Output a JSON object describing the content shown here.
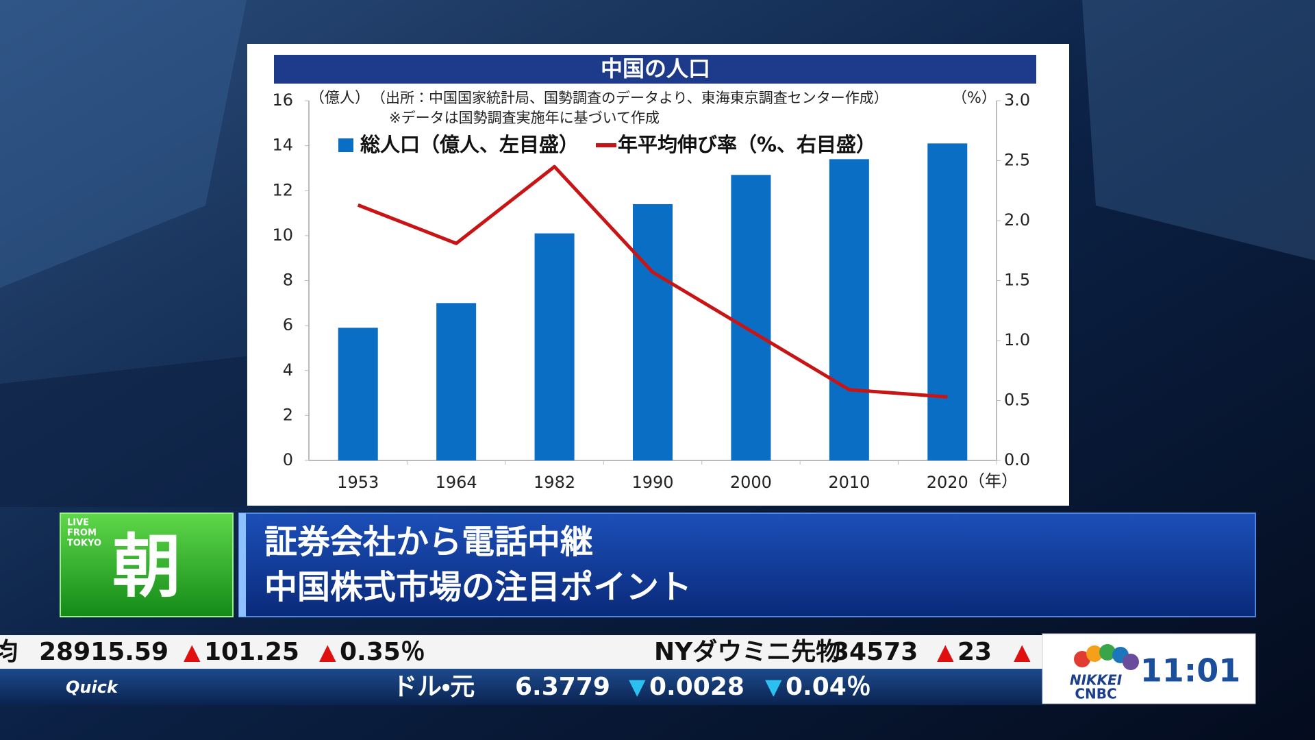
{
  "chart_data": {
    "type": "bar",
    "title": "中国の人口",
    "y_label": "（億人）",
    "source": "（出所：中国国家統計局、国勢調査のデータより、東海東京調査センター作成）",
    "y2_label": "（%）",
    "note": "※データは国勢調査実施年に基づいて作成",
    "x_unit": "（年）",
    "categories": [
      "1953",
      "1964",
      "1982",
      "1990",
      "2000",
      "2010",
      "2020"
    ],
    "series": [
      {
        "name": "総人口（億人、左目盛）",
        "color": "#0a6fc4",
        "type": "bar",
        "values": [
          5.9,
          7.0,
          10.1,
          11.4,
          12.7,
          13.4,
          14.1
        ]
      },
      {
        "name": "年平均伸び率（%、右目盛）",
        "color": "#c81414",
        "type": "line",
        "axis": "y2",
        "values": [
          2.13,
          1.81,
          2.45,
          1.57,
          1.08,
          0.59,
          0.53
        ]
      }
    ],
    "ylim": [
      0,
      16
    ],
    "yticks": [
      0,
      2,
      4,
      6,
      8,
      10,
      12,
      14,
      16
    ],
    "y2lim": [
      0,
      3
    ],
    "y2ticks": [
      {
        "value": 0,
        "label": "0.0"
      },
      0.5,
      {
        "value": 1,
        "label": "1.0"
      },
      1.5,
      {
        "value": 2,
        "label": "2.0"
      },
      2.5,
      {
        "value": 3,
        "label": "3.0"
      }
    ],
    "grid": false
  },
  "program": {
    "live": [
      "LIVE",
      "FROM",
      "TOKYO"
    ],
    "logo": "朝",
    "headline": [
      "証券会社から電話中継",
      "中国株式市場の注目ポイント"
    ]
  },
  "ticker": {
    "row1": [
      {
        "text": "均"
      },
      {
        "text": "28915.59"
      },
      {
        "arrow": "▲",
        "text": "101.25"
      },
      {
        "arrow": "▲",
        "text": "0.35％"
      },
      {
        "text": "NYダウミニ先物"
      },
      {
        "text": "34573"
      },
      {
        "arrow": "▲",
        "text": "23"
      },
      {
        "arrow": "▲"
      }
    ],
    "source": "Quick",
    "row2": [
      {
        "text": "ドル・元"
      },
      {
        "text": "6.3779"
      },
      {
        "arrow": "▼",
        "text": "0.0028"
      },
      {
        "arrow": "▼",
        "text": "0.04％"
      }
    ]
  },
  "brand": {
    "nikkei": "NIKKEI",
    "cnbc": "CNBC",
    "clock": "11:01"
  }
}
